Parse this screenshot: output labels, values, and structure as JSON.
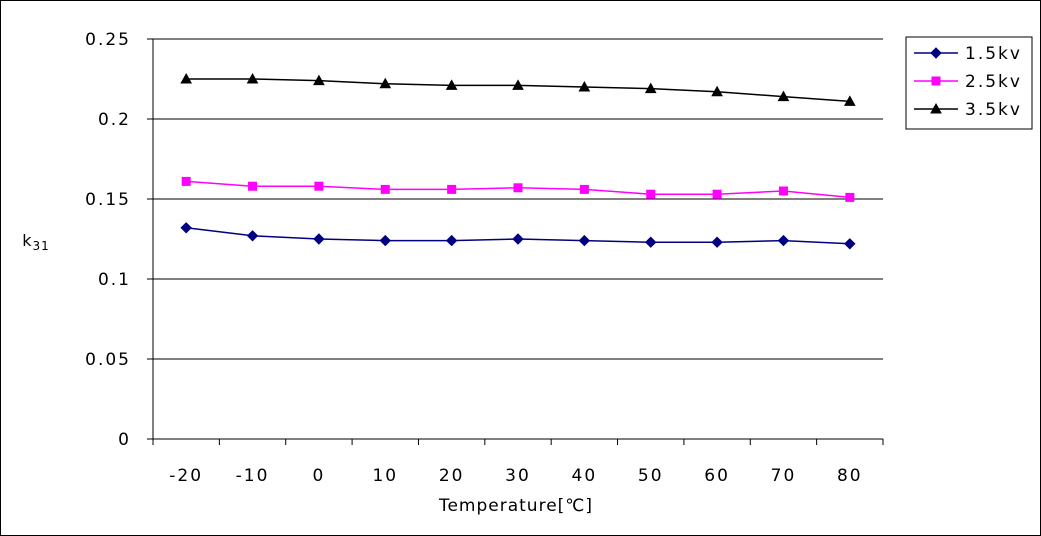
{
  "chart_data": {
    "type": "line",
    "xlabel": "Temperature[℃]",
    "ylabel": "k",
    "ylabel_sub": "31",
    "x": [
      -20,
      -10,
      0,
      10,
      20,
      30,
      40,
      50,
      60,
      70,
      80
    ],
    "x_tick_labels": [
      "-20",
      "-10",
      "0",
      "10",
      "20",
      "30",
      "40",
      "50",
      "60",
      "70",
      "80"
    ],
    "ylim": [
      0,
      0.25
    ],
    "y_ticks": [
      0,
      0.05,
      0.1,
      0.15,
      0.2,
      0.25
    ],
    "y_tick_labels": [
      "0",
      "0.05",
      "0.1",
      "0.15",
      "0.2",
      "0.25"
    ],
    "grid": "horizontal",
    "legend_position": "top-right",
    "series": [
      {
        "name": "1.5kv",
        "color": "#000080",
        "marker": "diamond",
        "values": [
          0.132,
          0.127,
          0.125,
          0.124,
          0.124,
          0.125,
          0.124,
          0.123,
          0.123,
          0.124,
          0.122
        ]
      },
      {
        "name": "2.5kv",
        "color": "#FF00FF",
        "marker": "square",
        "values": [
          0.161,
          0.158,
          0.158,
          0.156,
          0.156,
          0.157,
          0.156,
          0.153,
          0.153,
          0.155,
          0.151
        ]
      },
      {
        "name": "3.5kv",
        "color": "#000000",
        "marker": "triangle",
        "values": [
          0.225,
          0.225,
          0.224,
          0.222,
          0.221,
          0.221,
          0.22,
          0.219,
          0.217,
          0.214,
          0.211
        ]
      }
    ]
  }
}
